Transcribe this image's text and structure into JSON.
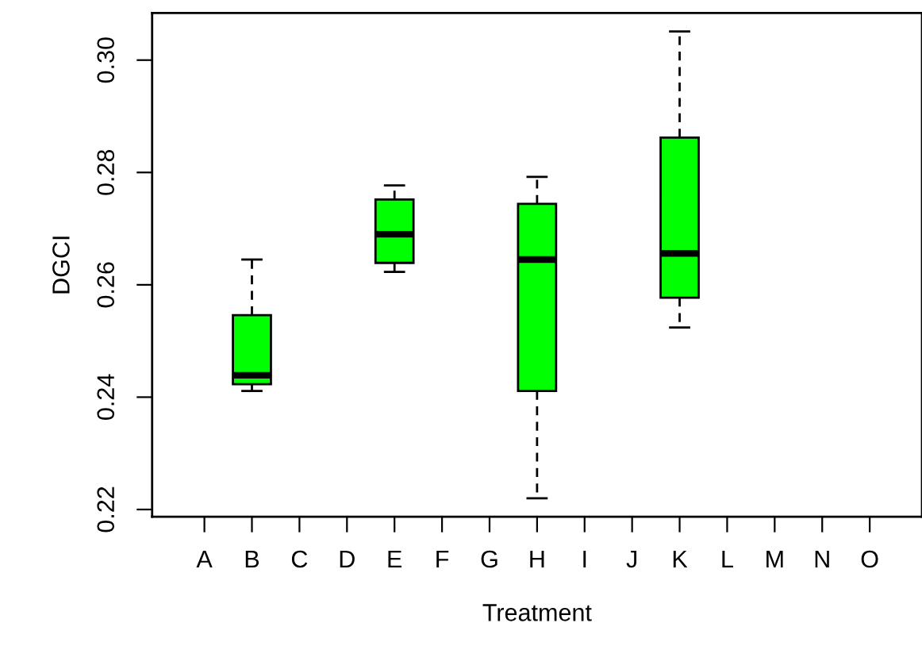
{
  "chart_data": {
    "type": "box",
    "xlabel": "Treatment",
    "ylabel": "DGCI",
    "categories": [
      "A",
      "B",
      "C",
      "D",
      "E",
      "F",
      "G",
      "H",
      "I",
      "J",
      "K",
      "L",
      "M",
      "N",
      "O"
    ],
    "color": "#00ff00",
    "boxes": [
      null,
      {
        "low": 0.2411,
        "q1": 0.2423,
        "median": 0.2439,
        "q3": 0.2546,
        "high": 0.2645
      },
      null,
      null,
      {
        "low": 0.2623,
        "q1": 0.2639,
        "median": 0.269,
        "q3": 0.2752,
        "high": 0.2777
      },
      null,
      null,
      {
        "low": 0.222,
        "q1": 0.2411,
        "median": 0.2645,
        "q3": 0.2744,
        "high": 0.2792
      },
      null,
      null,
      {
        "low": 0.2524,
        "q1": 0.2577,
        "median": 0.2656,
        "q3": 0.2862,
        "high": 0.3051
      },
      null,
      null,
      null,
      null
    ],
    "ylim": [
      0.2187,
      0.3084
    ],
    "yticks": [
      0.22,
      0.24,
      0.26,
      0.28,
      {
        "value": 0.3,
        "label": "0.30"
      }
    ],
    "grid": false
  }
}
